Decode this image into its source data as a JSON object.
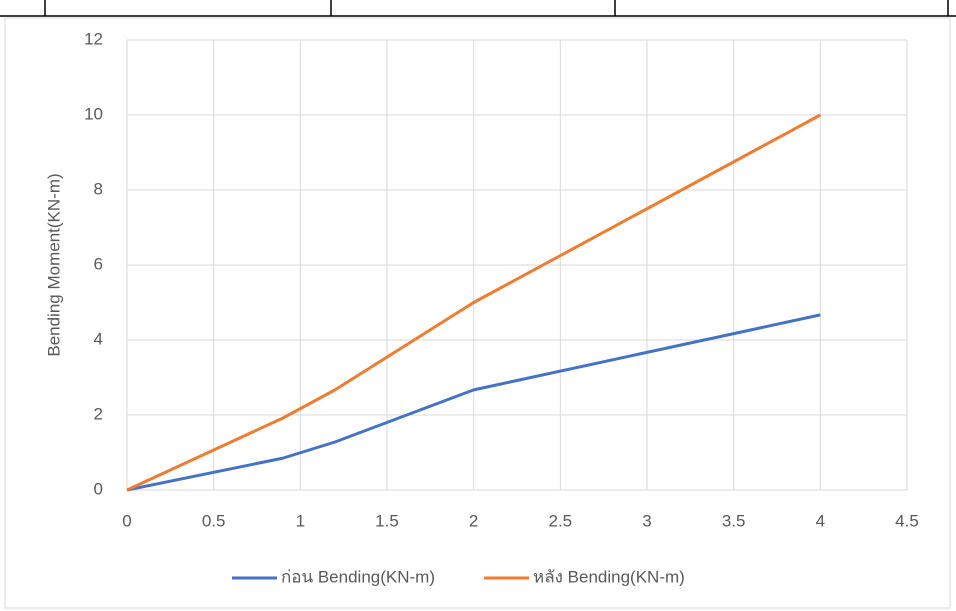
{
  "chart_data": {
    "type": "line",
    "y_label": "Bending Moment(KN-m)",
    "xlim": [
      0,
      4.5
    ],
    "xticks": [
      0,
      0.5,
      1,
      1.5,
      2,
      2.5,
      3,
      3.5,
      4,
      4.5
    ],
    "ylim": [
      0,
      12
    ],
    "yticks": [
      0,
      2,
      4,
      6,
      8,
      10,
      12
    ],
    "grid": true,
    "legend": "bottom",
    "series": [
      {
        "name": "ก่อน Bending(KN-m)",
        "color": "#4472c4",
        "x": [
          0,
          0.9,
          1.2,
          2,
          4
        ],
        "values": [
          0,
          0.85,
          1.28,
          2.67,
          4.67
        ]
      },
      {
        "name": "หลัง Bending(KN-m)",
        "color": "#ed7d31",
        "x": [
          0,
          0.9,
          1.2,
          2,
          4
        ],
        "values": [
          0,
          1.92,
          2.67,
          5.0,
          10.0
        ]
      }
    ]
  }
}
